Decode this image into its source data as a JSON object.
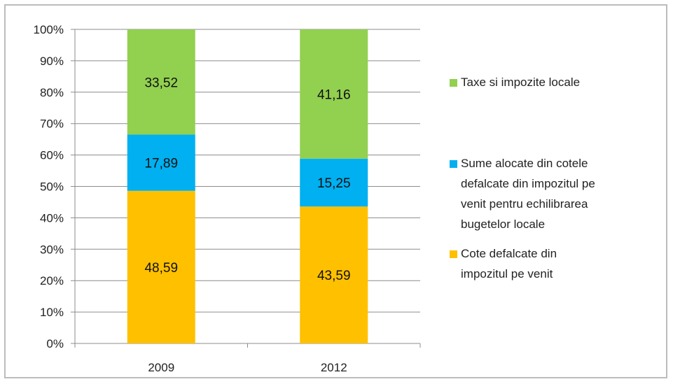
{
  "chart_data": {
    "type": "bar",
    "stacked": true,
    "percent_stacked": true,
    "categories": [
      "2009",
      "2012"
    ],
    "series": [
      {
        "name": "Cote defalcate din impozitul pe venit",
        "values": [
          48.59,
          43.59
        ],
        "labels": [
          "48,59",
          "43,59"
        ],
        "color": "#ffc000"
      },
      {
        "name": "Sume alocate din cotele defalcate din impozitul pe venit pentru echilibrarea bugetelor locale",
        "values": [
          17.89,
          15.25
        ],
        "labels": [
          "17,89",
          "15,25"
        ],
        "color": "#00b0f0"
      },
      {
        "name": "Taxe si impozite locale",
        "values": [
          33.52,
          41.16
        ],
        "labels": [
          "33,52",
          "41,16"
        ],
        "color": "#92d050"
      }
    ],
    "y_ticks": [
      "0%",
      "10%",
      "20%",
      "30%",
      "40%",
      "50%",
      "60%",
      "70%",
      "80%",
      "90%",
      "100%"
    ],
    "ylim": [
      0,
      100
    ],
    "grid": true,
    "legend": {
      "position": "right",
      "entries": [
        {
          "series": 2,
          "lines": [
            "Taxe si impozite locale"
          ]
        },
        {
          "series": 1,
          "lines": [
            "Sume alocate din cotele",
            "defalcate din impozitul pe",
            "venit pentru echilibrarea",
            "bugetelor locale"
          ]
        },
        {
          "series": 0,
          "lines": [
            "Cote defalcate din",
            "impozitul pe venit"
          ]
        }
      ]
    },
    "title": "",
    "xlabel": "",
    "ylabel": ""
  }
}
